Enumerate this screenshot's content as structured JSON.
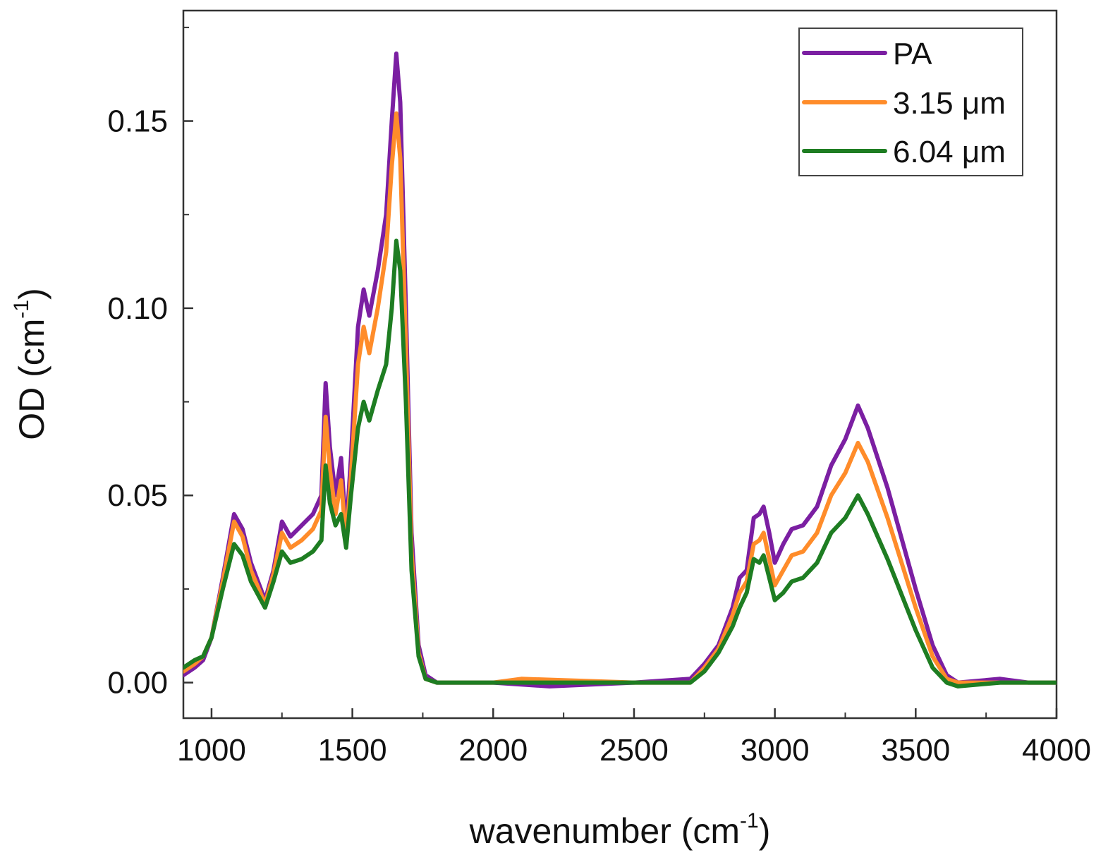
{
  "chart_data": {
    "type": "line",
    "xlabel": "wavenumber (cm",
    "xlabel_sup": "-1",
    "xlabel_end": ")",
    "ylabel": "OD (cm",
    "ylabel_sup": "-1",
    "ylabel_end": ")",
    "xlim": [
      900,
      4000
    ],
    "ylim": [
      -0.0095,
      0.1795
    ],
    "xticks": [
      1000,
      1500,
      2000,
      2500,
      3000,
      3500,
      4000
    ],
    "xtick_labels": [
      "1000",
      "1500",
      "2000",
      "2500",
      "3000",
      "3500",
      "4000"
    ],
    "yticks": [
      0.0,
      0.05,
      0.1,
      0.15
    ],
    "ytick_labels": [
      "0.00",
      "0.05",
      "0.10",
      "0.15"
    ],
    "legend_position": "top-right",
    "series": [
      {
        "name": "PA",
        "color": "#7B1FA2",
        "points": [
          [
            900,
            0.002
          ],
          [
            940,
            0.004
          ],
          [
            970,
            0.006
          ],
          [
            1000,
            0.012
          ],
          [
            1040,
            0.028
          ],
          [
            1080,
            0.045
          ],
          [
            1110,
            0.041
          ],
          [
            1140,
            0.032
          ],
          [
            1190,
            0.022
          ],
          [
            1220,
            0.03
          ],
          [
            1250,
            0.043
          ],
          [
            1280,
            0.039
          ],
          [
            1320,
            0.042
          ],
          [
            1360,
            0.045
          ],
          [
            1390,
            0.05
          ],
          [
            1405,
            0.08
          ],
          [
            1420,
            0.063
          ],
          [
            1440,
            0.05
          ],
          [
            1460,
            0.06
          ],
          [
            1478,
            0.04
          ],
          [
            1495,
            0.06
          ],
          [
            1520,
            0.095
          ],
          [
            1540,
            0.105
          ],
          [
            1560,
            0.098
          ],
          [
            1590,
            0.11
          ],
          [
            1620,
            0.125
          ],
          [
            1640,
            0.15
          ],
          [
            1656,
            0.168
          ],
          [
            1670,
            0.155
          ],
          [
            1690,
            0.1
          ],
          [
            1710,
            0.04
          ],
          [
            1735,
            0.01
          ],
          [
            1760,
            0.002
          ],
          [
            1800,
            0.0
          ],
          [
            2000,
            0.0
          ],
          [
            2200,
            -0.001
          ],
          [
            2500,
            0.0
          ],
          [
            2700,
            0.001
          ],
          [
            2750,
            0.005
          ],
          [
            2800,
            0.01
          ],
          [
            2850,
            0.02
          ],
          [
            2875,
            0.028
          ],
          [
            2900,
            0.03
          ],
          [
            2925,
            0.044
          ],
          [
            2945,
            0.045
          ],
          [
            2960,
            0.047
          ],
          [
            2980,
            0.04
          ],
          [
            3000,
            0.032
          ],
          [
            3030,
            0.037
          ],
          [
            3060,
            0.041
          ],
          [
            3100,
            0.042
          ],
          [
            3150,
            0.047
          ],
          [
            3200,
            0.058
          ],
          [
            3250,
            0.065
          ],
          [
            3295,
            0.074
          ],
          [
            3330,
            0.068
          ],
          [
            3400,
            0.052
          ],
          [
            3500,
            0.025
          ],
          [
            3560,
            0.01
          ],
          [
            3610,
            0.002
          ],
          [
            3650,
            0.0
          ],
          [
            3800,
            0.001
          ],
          [
            3900,
            0.0
          ],
          [
            4000,
            0.0
          ]
        ]
      },
      {
        "name": "3.15 μm",
        "color": "#FF8C2A",
        "points": [
          [
            900,
            0.003
          ],
          [
            940,
            0.005
          ],
          [
            970,
            0.007
          ],
          [
            1000,
            0.012
          ],
          [
            1040,
            0.027
          ],
          [
            1080,
            0.043
          ],
          [
            1110,
            0.039
          ],
          [
            1140,
            0.03
          ],
          [
            1190,
            0.021
          ],
          [
            1220,
            0.029
          ],
          [
            1250,
            0.04
          ],
          [
            1280,
            0.036
          ],
          [
            1320,
            0.038
          ],
          [
            1360,
            0.041
          ],
          [
            1390,
            0.046
          ],
          [
            1405,
            0.071
          ],
          [
            1420,
            0.057
          ],
          [
            1440,
            0.045
          ],
          [
            1460,
            0.054
          ],
          [
            1478,
            0.038
          ],
          [
            1495,
            0.055
          ],
          [
            1520,
            0.085
          ],
          [
            1540,
            0.095
          ],
          [
            1560,
            0.088
          ],
          [
            1590,
            0.1
          ],
          [
            1620,
            0.115
          ],
          [
            1640,
            0.138
          ],
          [
            1656,
            0.152
          ],
          [
            1670,
            0.14
          ],
          [
            1690,
            0.09
          ],
          [
            1710,
            0.035
          ],
          [
            1735,
            0.008
          ],
          [
            1760,
            0.001
          ],
          [
            1800,
            0.0
          ],
          [
            2000,
            0.0
          ],
          [
            2100,
            0.001
          ],
          [
            2500,
            0.0
          ],
          [
            2700,
            0.0
          ],
          [
            2750,
            0.004
          ],
          [
            2800,
            0.009
          ],
          [
            2850,
            0.018
          ],
          [
            2875,
            0.024
          ],
          [
            2900,
            0.027
          ],
          [
            2925,
            0.037
          ],
          [
            2945,
            0.038
          ],
          [
            2960,
            0.04
          ],
          [
            2980,
            0.033
          ],
          [
            3000,
            0.026
          ],
          [
            3030,
            0.03
          ],
          [
            3060,
            0.034
          ],
          [
            3100,
            0.035
          ],
          [
            3150,
            0.04
          ],
          [
            3200,
            0.05
          ],
          [
            3250,
            0.056
          ],
          [
            3295,
            0.064
          ],
          [
            3330,
            0.059
          ],
          [
            3400,
            0.044
          ],
          [
            3500,
            0.02
          ],
          [
            3560,
            0.007
          ],
          [
            3610,
            0.001
          ],
          [
            3650,
            0.0
          ],
          [
            3800,
            0.0
          ],
          [
            3900,
            0.0
          ],
          [
            4000,
            0.0
          ]
        ]
      },
      {
        "name": "6.04 μm",
        "color": "#1E7D22",
        "points": [
          [
            900,
            0.004
          ],
          [
            940,
            0.006
          ],
          [
            970,
            0.007
          ],
          [
            1000,
            0.012
          ],
          [
            1040,
            0.025
          ],
          [
            1080,
            0.037
          ],
          [
            1110,
            0.034
          ],
          [
            1140,
            0.027
          ],
          [
            1190,
            0.02
          ],
          [
            1220,
            0.027
          ],
          [
            1250,
            0.035
          ],
          [
            1280,
            0.032
          ],
          [
            1320,
            0.033
          ],
          [
            1360,
            0.035
          ],
          [
            1390,
            0.038
          ],
          [
            1405,
            0.058
          ],
          [
            1420,
            0.048
          ],
          [
            1440,
            0.042
          ],
          [
            1460,
            0.045
          ],
          [
            1478,
            0.036
          ],
          [
            1495,
            0.05
          ],
          [
            1520,
            0.068
          ],
          [
            1540,
            0.075
          ],
          [
            1560,
            0.07
          ],
          [
            1590,
            0.078
          ],
          [
            1620,
            0.085
          ],
          [
            1640,
            0.1
          ],
          [
            1656,
            0.118
          ],
          [
            1670,
            0.11
          ],
          [
            1690,
            0.075
          ],
          [
            1710,
            0.03
          ],
          [
            1735,
            0.007
          ],
          [
            1760,
            0.001
          ],
          [
            1800,
            0.0
          ],
          [
            2000,
            0.0
          ],
          [
            2500,
            0.0
          ],
          [
            2700,
            0.0
          ],
          [
            2750,
            0.003
          ],
          [
            2800,
            0.008
          ],
          [
            2850,
            0.015
          ],
          [
            2875,
            0.02
          ],
          [
            2900,
            0.024
          ],
          [
            2925,
            0.033
          ],
          [
            2945,
            0.032
          ],
          [
            2960,
            0.034
          ],
          [
            2980,
            0.028
          ],
          [
            3000,
            0.022
          ],
          [
            3030,
            0.024
          ],
          [
            3060,
            0.027
          ],
          [
            3100,
            0.028
          ],
          [
            3150,
            0.032
          ],
          [
            3200,
            0.04
          ],
          [
            3250,
            0.044
          ],
          [
            3295,
            0.05
          ],
          [
            3330,
            0.045
          ],
          [
            3400,
            0.033
          ],
          [
            3500,
            0.014
          ],
          [
            3560,
            0.004
          ],
          [
            3610,
            0.0
          ],
          [
            3650,
            -0.001
          ],
          [
            3800,
            0.0
          ],
          [
            3900,
            0.0
          ],
          [
            4000,
            0.0
          ]
        ]
      }
    ]
  }
}
